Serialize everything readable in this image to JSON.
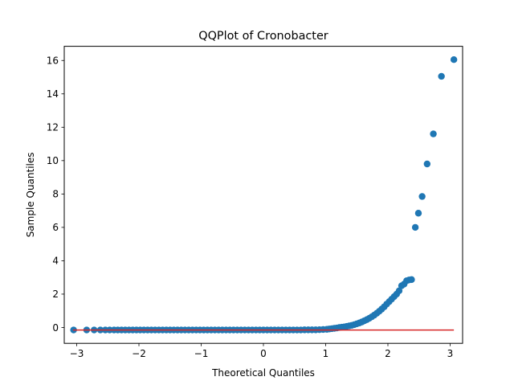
{
  "chart_data": {
    "type": "scatter",
    "title": "QQPlot of Cronobacter",
    "xlabel": "Theoretical Quantiles",
    "ylabel": "Sample Quantiles",
    "xlim": [
      -3.2,
      3.2
    ],
    "ylim": [
      -0.95,
      16.85
    ],
    "xticks": [
      -3,
      -2,
      -1,
      0,
      1,
      2,
      3
    ],
    "yticks": [
      0,
      2,
      4,
      6,
      8,
      10,
      12,
      14,
      16
    ],
    "grid": false,
    "legend": "none",
    "series": [
      {
        "kind": "points",
        "color": "#1f77b4",
        "x": [
          -3.05,
          -2.84,
          -2.72,
          -2.62,
          -2.54,
          -2.47,
          -2.4,
          -2.34,
          -2.28,
          -2.22,
          -2.16,
          -2.1,
          -2.04,
          -1.98,
          -1.92,
          -1.86,
          -1.8,
          -1.74,
          -1.68,
          -1.62,
          -1.56,
          -1.5,
          -1.44,
          -1.38,
          -1.32,
          -1.26,
          -1.2,
          -1.14,
          -1.08,
          -1.02,
          -0.96,
          -0.9,
          -0.84,
          -0.78,
          -0.72,
          -0.66,
          -0.6,
          -0.54,
          -0.48,
          -0.42,
          -0.36,
          -0.3,
          -0.24,
          -0.18,
          -0.12,
          -0.06,
          0.0,
          0.06,
          0.12,
          0.18,
          0.24,
          0.3,
          0.36,
          0.42,
          0.48,
          0.54,
          0.6,
          0.66,
          0.72,
          0.78,
          0.84,
          0.9,
          0.96,
          1.02,
          1.06,
          1.1,
          1.14,
          1.18,
          1.22,
          1.26,
          1.3,
          1.34,
          1.38,
          1.42,
          1.46,
          1.5,
          1.54,
          1.58,
          1.62,
          1.66,
          1.7,
          1.74,
          1.78,
          1.82,
          1.86,
          1.9,
          1.94,
          1.98,
          2.02,
          2.06,
          2.1,
          2.14,
          2.18,
          2.22,
          2.26,
          2.3,
          2.34,
          2.38,
          2.44,
          2.49,
          2.55,
          2.63,
          2.73,
          2.86,
          3.06
        ],
        "y": [
          -0.15,
          -0.15,
          -0.15,
          -0.15,
          -0.15,
          -0.15,
          -0.15,
          -0.15,
          -0.15,
          -0.15,
          -0.15,
          -0.15,
          -0.15,
          -0.15,
          -0.15,
          -0.15,
          -0.15,
          -0.15,
          -0.15,
          -0.15,
          -0.15,
          -0.15,
          -0.15,
          -0.15,
          -0.15,
          -0.15,
          -0.15,
          -0.15,
          -0.15,
          -0.15,
          -0.15,
          -0.15,
          -0.15,
          -0.15,
          -0.15,
          -0.15,
          -0.15,
          -0.15,
          -0.15,
          -0.15,
          -0.15,
          -0.15,
          -0.15,
          -0.15,
          -0.15,
          -0.15,
          -0.15,
          -0.15,
          -0.15,
          -0.15,
          -0.15,
          -0.15,
          -0.15,
          -0.15,
          -0.15,
          -0.15,
          -0.15,
          -0.14,
          -0.14,
          -0.14,
          -0.14,
          -0.13,
          -0.12,
          -0.11,
          -0.09,
          -0.07,
          -0.05,
          -0.03,
          0.0,
          0.02,
          0.04,
          0.07,
          0.1,
          0.13,
          0.17,
          0.22,
          0.27,
          0.33,
          0.4,
          0.47,
          0.55,
          0.64,
          0.74,
          0.85,
          0.97,
          1.1,
          1.24,
          1.4,
          1.55,
          1.7,
          1.85,
          2.0,
          2.2,
          2.5,
          2.6,
          2.8,
          2.85,
          2.87,
          6.0,
          6.85,
          7.85,
          9.8,
          11.6,
          15.05,
          16.05
        ]
      },
      {
        "kind": "line",
        "color": "#d62728",
        "x": [
          -3.06,
          3.06
        ],
        "y": [
          -0.15,
          -0.15
        ]
      }
    ]
  }
}
